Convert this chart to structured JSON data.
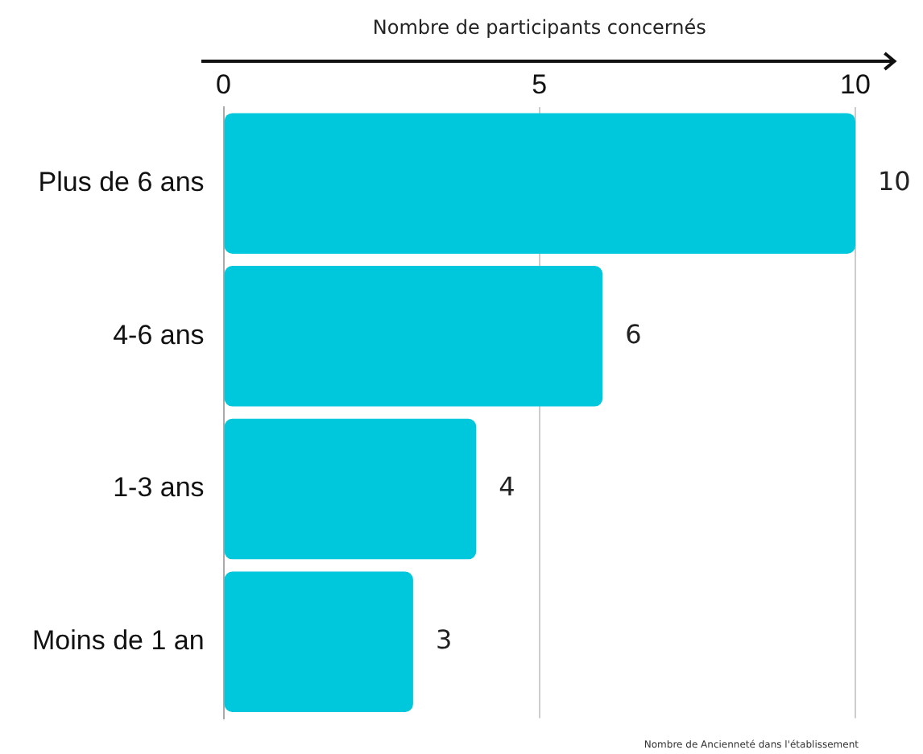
{
  "chart_data": {
    "type": "bar",
    "orientation": "horizontal",
    "xlabel": "Nombre de participants concernés",
    "categories": [
      "Plus de 6 ans",
      "4-6 ans",
      "1-3 ans",
      "Moins de 1 an"
    ],
    "values": [
      10,
      6,
      4,
      3
    ],
    "color": "#00c8dc",
    "xlim": [
      0,
      10
    ],
    "xticks": [
      0,
      5,
      10
    ],
    "grid": "x",
    "data_labels": true,
    "legend": false,
    "annotations": [
      "Nombre de Ancienneté dans l'établissement"
    ]
  }
}
